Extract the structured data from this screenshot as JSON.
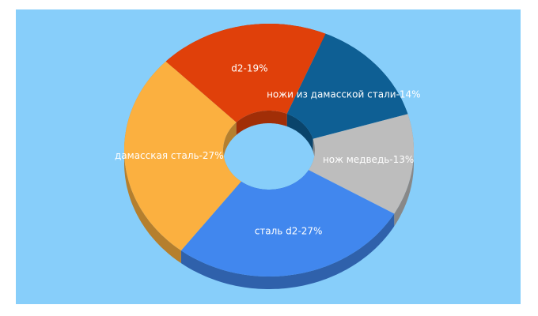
{
  "chart_data": {
    "type": "donut",
    "values": [
      14,
      13,
      27,
      27,
      19
    ],
    "value_labels": [
      "ножи из дамасской стали-14%",
      "нож медведь-13%",
      "сталь d2-27%",
      "дамасская сталь-27%",
      "d2-19%"
    ],
    "colors": [
      "#0e5f94",
      "#bdbdbd",
      "#4187ee",
      "#fbb040",
      "#e0400a"
    ]
  }
}
